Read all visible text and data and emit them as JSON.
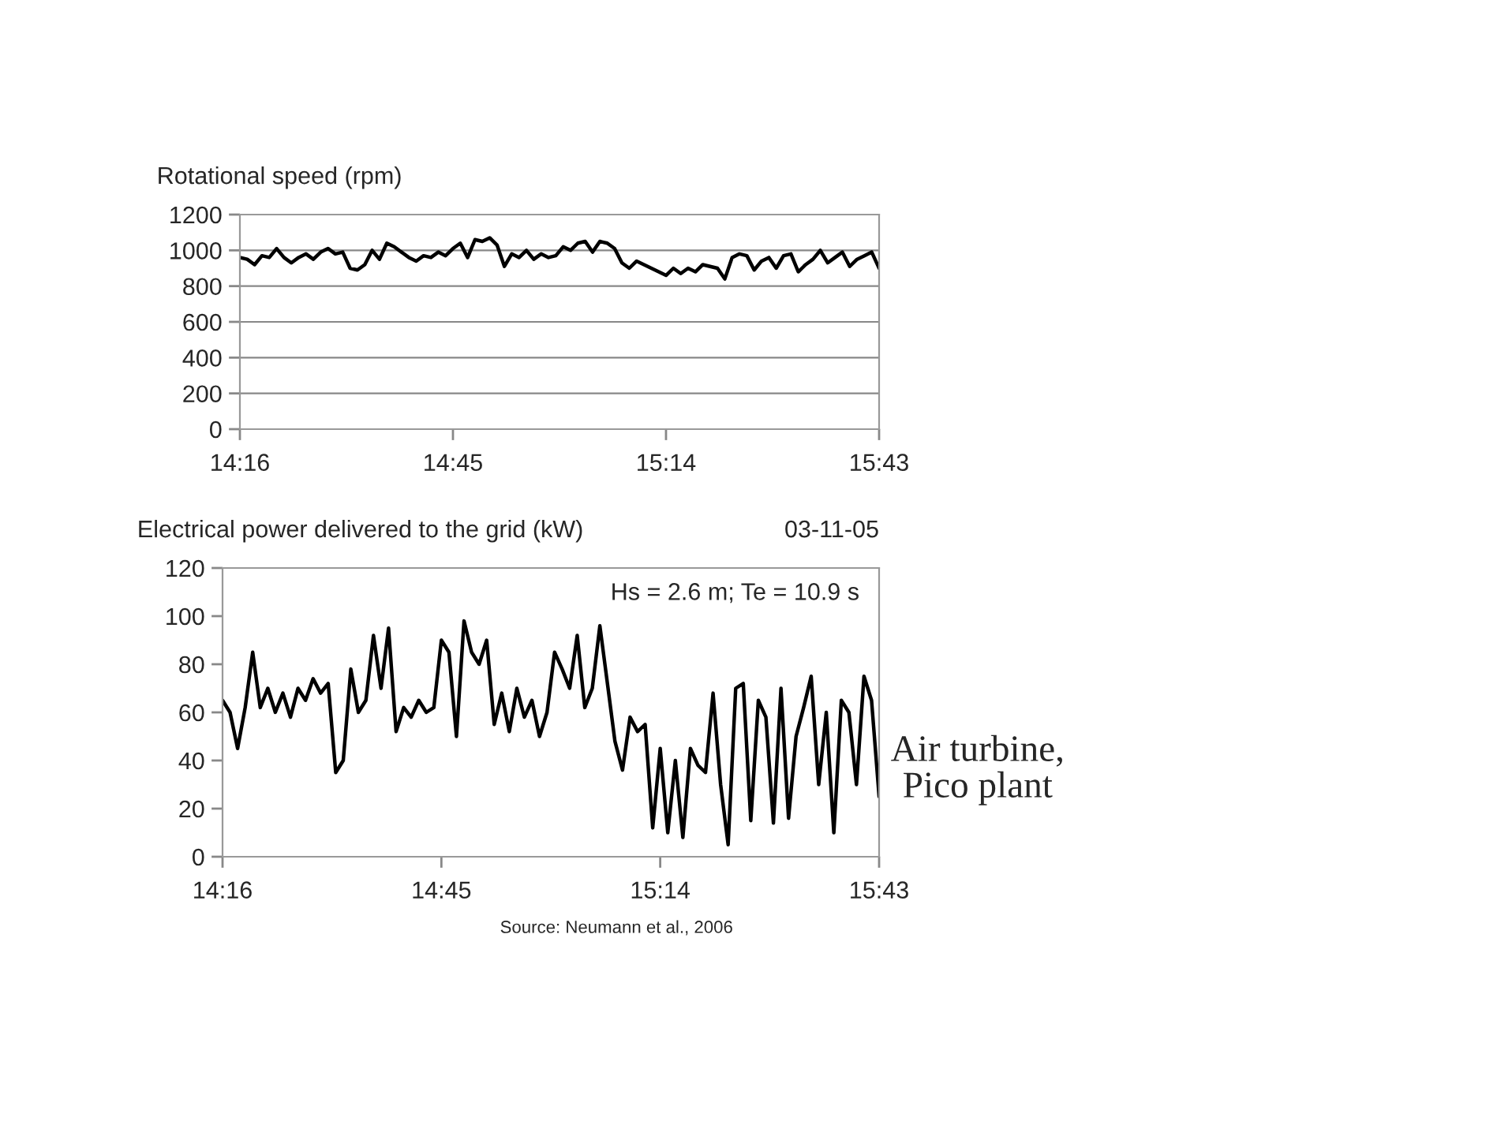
{
  "chart_data": [
    {
      "type": "line",
      "ylabel": "Rotational speed (rpm)",
      "x": [
        14.2667,
        14.2833,
        14.3,
        14.3167,
        14.3333,
        14.35,
        14.3667,
        14.3833,
        14.4,
        14.4167,
        14.4333,
        14.45,
        14.4667,
        14.4833,
        14.5,
        14.5167,
        14.5333,
        14.55,
        14.5667,
        14.5833,
        14.6,
        14.6167,
        14.6333,
        14.65,
        14.6667,
        14.6833,
        14.7,
        14.7167,
        14.7333,
        14.75,
        14.7667,
        14.7833,
        14.8,
        14.8167,
        14.8333,
        14.85,
        14.8667,
        14.8833,
        14.9,
        14.9167,
        14.9333,
        14.95,
        14.9667,
        14.9833,
        15,
        15.0167,
        15.0333,
        15.05,
        15.0667,
        15.0833,
        15.1,
        15.1167,
        15.1333,
        15.15,
        15.1667,
        15.1833,
        15.2,
        15.2167,
        15.2333,
        15.25,
        15.2667,
        15.2833,
        15.3,
        15.3167,
        15.3333,
        15.35,
        15.3667,
        15.3833,
        15.4,
        15.4167,
        15.4333,
        15.45,
        15.4667,
        15.4833,
        15.5,
        15.5167,
        15.5333,
        15.55,
        15.5667,
        15.5833,
        15.6,
        15.6167,
        15.6333,
        15.65,
        15.6667,
        15.6833,
        15.7,
        15.7167
      ],
      "series": [
        {
          "color": "#000000",
          "values": [
            960,
            950,
            920,
            970,
            960,
            1010,
            960,
            930,
            960,
            980,
            950,
            990,
            1010,
            980,
            990,
            900,
            890,
            920,
            1000,
            950,
            1040,
            1020,
            990,
            960,
            940,
            970,
            960,
            990,
            970,
            1010,
            1040,
            960,
            1060,
            1050,
            1070,
            1030,
            910,
            980,
            960,
            1000,
            950,
            980,
            960,
            970,
            1020,
            1000,
            1040,
            1050,
            990,
            1050,
            1040,
            1010,
            930,
            900,
            940,
            920,
            900,
            880,
            860,
            900,
            870,
            900,
            880,
            920,
            910,
            900,
            840,
            960,
            980,
            970,
            890,
            940,
            960,
            900,
            970,
            980,
            880,
            920,
            950,
            1000,
            930,
            960,
            990,
            910,
            950,
            970,
            990,
            900
          ]
        }
      ],
      "xlim": [
        14.2667,
        15.7167
      ],
      "xticks": [
        {
          "value": 14.2667,
          "label": "14:16"
        },
        {
          "value": 14.75,
          "label": "14:45"
        },
        {
          "value": 15.2333,
          "label": "15:14"
        },
        {
          "value": 15.7167,
          "label": "15:43"
        }
      ],
      "ylim": [
        0,
        1200
      ],
      "yticks": [
        0,
        200,
        400,
        600,
        800,
        1000,
        1200
      ],
      "grid": "y",
      "marker": "none",
      "line_style": "solid"
    },
    {
      "type": "line",
      "ylabel": "Electrical power delivered to the grid (kW)",
      "subtitle": "03-11-05",
      "x": [
        14.2667,
        14.2833,
        14.3,
        14.3167,
        14.3333,
        14.35,
        14.3667,
        14.3833,
        14.4,
        14.4167,
        14.4333,
        14.45,
        14.4667,
        14.4833,
        14.5,
        14.5167,
        14.5333,
        14.55,
        14.5667,
        14.5833,
        14.6,
        14.6167,
        14.6333,
        14.65,
        14.6667,
        14.6833,
        14.7,
        14.7167,
        14.7333,
        14.75,
        14.7667,
        14.7833,
        14.8,
        14.8167,
        14.8333,
        14.85,
        14.8667,
        14.8833,
        14.9,
        14.9167,
        14.9333,
        14.95,
        14.9667,
        14.9833,
        15,
        15.0167,
        15.0333,
        15.05,
        15.0667,
        15.0833,
        15.1,
        15.1167,
        15.1333,
        15.15,
        15.1667,
        15.1833,
        15.2,
        15.2167,
        15.2333,
        15.25,
        15.2667,
        15.2833,
        15.3,
        15.3167,
        15.3333,
        15.35,
        15.3667,
        15.3833,
        15.4,
        15.4167,
        15.4333,
        15.45,
        15.4667,
        15.4833,
        15.5,
        15.5167,
        15.5333,
        15.55,
        15.5667,
        15.5833,
        15.6,
        15.6167,
        15.6333,
        15.65,
        15.6667,
        15.6833,
        15.7,
        15.7167
      ],
      "series": [
        {
          "color": "#000000",
          "values": [
            65,
            60,
            45,
            62,
            85,
            62,
            70,
            60,
            68,
            58,
            70,
            65,
            74,
            68,
            72,
            35,
            40,
            78,
            60,
            65,
            92,
            70,
            95,
            52,
            62,
            58,
            65,
            60,
            62,
            90,
            85,
            50,
            98,
            85,
            80,
            90,
            55,
            68,
            52,
            70,
            58,
            65,
            50,
            60,
            85,
            78,
            70,
            92,
            62,
            70,
            96,
            72,
            48,
            36,
            58,
            52,
            55,
            12,
            45,
            10,
            40,
            8,
            45,
            38,
            35,
            68,
            30,
            5,
            70,
            72,
            15,
            65,
            58,
            14,
            70,
            16,
            50,
            62,
            75,
            30,
            60,
            10,
            65,
            60,
            30,
            75,
            65,
            25
          ]
        }
      ],
      "xlim": [
        14.2667,
        15.7167
      ],
      "xticks": [
        {
          "value": 14.2667,
          "label": "14:16"
        },
        {
          "value": 14.75,
          "label": "14:45"
        },
        {
          "value": 15.2333,
          "label": "15:14"
        },
        {
          "value": 15.7167,
          "label": "15:43"
        }
      ],
      "ylim": [
        0,
        120
      ],
      "yticks": [
        0,
        20,
        40,
        60,
        80,
        100,
        120
      ],
      "grid": false,
      "marker": "none",
      "line_style": "solid",
      "annotations": [
        "Hs = 2.6 m; Te = 10.9 s",
        "Air turbine,\nPico plant",
        "Source: Neumann et al., 2006"
      ]
    }
  ]
}
